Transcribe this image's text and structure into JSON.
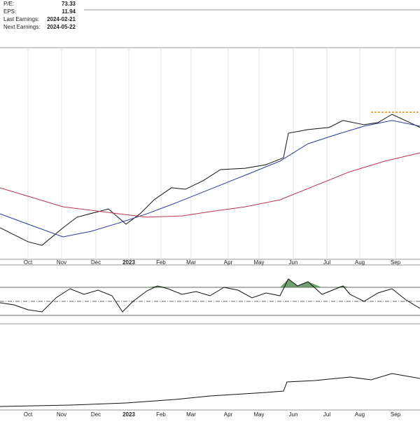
{
  "info": [
    {
      "label": "P/E:",
      "value": "73.33"
    },
    {
      "label": "EPS:",
      "value": "11.94"
    },
    {
      "label": "Last Earnings:",
      "value": "2024-02-21"
    },
    {
      "label": "Next Earnings:",
      "value": "2024-05-22"
    }
  ],
  "chart_data": [
    {
      "type": "line",
      "xlim": [
        0,
        600
      ],
      "ylim": [
        0,
        100
      ],
      "grid": true,
      "xticks": [
        {
          "value": 40,
          "label": "Oct"
        },
        {
          "value": 88,
          "label": "Nov"
        },
        {
          "value": 137,
          "label": "Dec"
        },
        {
          "value": 184,
          "label": "2023"
        },
        {
          "value": 230,
          "label": "Feb"
        },
        {
          "value": 273,
          "label": "Mar"
        },
        {
          "value": 326,
          "label": "Apr"
        },
        {
          "value": 370,
          "label": "May"
        },
        {
          "value": 419,
          "label": "Jun"
        },
        {
          "value": 467,
          "label": "Jul"
        },
        {
          "value": 514,
          "label": "Aug"
        },
        {
          "value": 565,
          "label": "Sep"
        }
      ],
      "series": [
        {
          "color": "#111111",
          "x": [
            0,
            40,
            60,
            90,
            110,
            155,
            180,
            200,
            220,
            245,
            265,
            290,
            315,
            350,
            380,
            405,
            412,
            440,
            470,
            490,
            520,
            540,
            560,
            575,
            600
          ],
          "values": [
            14.9,
            8.3,
            6.6,
            14.9,
            19.9,
            23.8,
            16.6,
            21.5,
            28.1,
            33.8,
            33.1,
            37.1,
            42.4,
            43.0,
            44.7,
            48.0,
            59.6,
            61.3,
            62.3,
            65.6,
            63.6,
            64.6,
            68.5,
            66.2,
            62.3
          ]
        },
        {
          "color": "#2b3a99",
          "x": [
            0,
            40,
            90,
            130,
            170,
            210,
            250,
            300,
            350,
            400,
            440,
            480,
            520,
            560,
            600
          ],
          "values": [
            21.5,
            16.6,
            10.6,
            13.2,
            17.2,
            21.5,
            26.5,
            33.1,
            39.7,
            46.4,
            54.6,
            58.9,
            62.9,
            65.6,
            62.9
          ]
        },
        {
          "color": "#b8334f",
          "x": [
            0,
            40,
            90,
            130,
            170,
            210,
            260,
            300,
            350,
            400,
            450,
            500,
            550,
            600
          ],
          "values": [
            33.8,
            29.8,
            24.8,
            23.2,
            21.5,
            19.9,
            20.5,
            22.5,
            24.8,
            28.1,
            34.8,
            41.4,
            46.4,
            50.3
          ]
        },
        {
          "color": "#f08c00",
          "dashed": true,
          "x": [
            530,
            600
          ],
          "values": [
            69.5,
            69.5
          ]
        }
      ]
    },
    {
      "type": "line",
      "xlim": [
        0,
        600
      ],
      "ylim": [
        0,
        100
      ],
      "levels": [
        70,
        50,
        30
      ],
      "series": [
        {
          "color": "#111111",
          "fill_above": 70,
          "x": [
            0,
            20,
            40,
            60,
            80,
            100,
            120,
            140,
            160,
            175,
            190,
            210,
            225,
            240,
            260,
            280,
            300,
            320,
            340,
            360,
            380,
            400,
            412,
            425,
            440,
            460,
            480,
            490,
            500,
            520,
            540,
            560,
            580,
            600
          ],
          "values": [
            48,
            45,
            38,
            35,
            55,
            68,
            60,
            66,
            58,
            35,
            50,
            65,
            72,
            68,
            60,
            64,
            58,
            70,
            66,
            55,
            62,
            58,
            82,
            72,
            78,
            60,
            68,
            72,
            60,
            50,
            62,
            68,
            52,
            40
          ]
        }
      ]
    },
    {
      "type": "line",
      "xlim": [
        0,
        600
      ],
      "ylim": [
        0,
        100
      ],
      "xticks": [
        {
          "value": 40,
          "label": "Oct"
        },
        {
          "value": 88,
          "label": "Nov"
        },
        {
          "value": 137,
          "label": "Dec"
        },
        {
          "value": 184,
          "label": "2023"
        },
        {
          "value": 230,
          "label": "Feb"
        },
        {
          "value": 273,
          "label": "Mar"
        },
        {
          "value": 326,
          "label": "Apr"
        },
        {
          "value": 370,
          "label": "May"
        },
        {
          "value": 419,
          "label": "Jun"
        },
        {
          "value": 467,
          "label": "Jul"
        },
        {
          "value": 514,
          "label": "Aug"
        },
        {
          "value": 565,
          "label": "Sep"
        }
      ],
      "series": [
        {
          "color": "#111111",
          "x": [
            0,
            100,
            180,
            250,
            300,
            380,
            405,
            410,
            450,
            500,
            530,
            560,
            600
          ],
          "values": [
            5,
            7,
            10,
            15,
            20,
            25,
            27,
            40,
            42,
            47,
            43,
            52,
            45
          ]
        }
      ]
    }
  ]
}
